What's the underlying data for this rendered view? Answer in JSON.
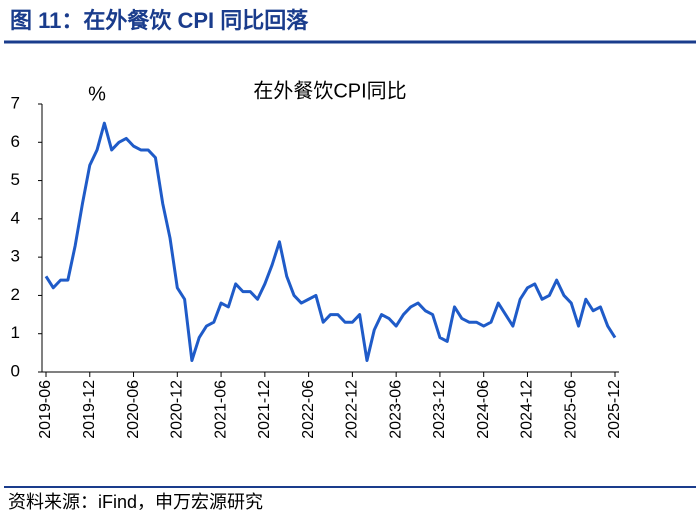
{
  "chart_data": {
    "type": "line",
    "header": "图 11：在外餐饮 CPI 同比回落",
    "title": "在外餐饮CPI同比",
    "y_unit": "%",
    "source": "资料来源：iFind，申万宏源研究",
    "categories": [
      "2019-06",
      null,
      null,
      null,
      null,
      null,
      "2019-12",
      null,
      null,
      null,
      null,
      null,
      "2020-06",
      null,
      null,
      null,
      null,
      null,
      "2020-12",
      null,
      null,
      null,
      null,
      null,
      "2021-06",
      null,
      null,
      null,
      null,
      null,
      "2021-12",
      null,
      null,
      null,
      null,
      null,
      "2022-06",
      null,
      null,
      null,
      null,
      null,
      "2022-12",
      null,
      null,
      null,
      null,
      null,
      "2023-06",
      null,
      null,
      null,
      null,
      null,
      "2023-12",
      null,
      null,
      null,
      null,
      null,
      "2024-06",
      null,
      null,
      null,
      null,
      null,
      "2024-12",
      null,
      null,
      null,
      null,
      null,
      "2025-06",
      null,
      null,
      null,
      null,
      null,
      "2025-12"
    ],
    "series": [
      {
        "name": "在外餐饮CPI同比",
        "color": "#1f5bc8",
        "values": [
          2.5,
          2.2,
          2.4,
          2.4,
          3.3,
          4.4,
          5.4,
          5.8,
          6.5,
          5.8,
          6.0,
          6.1,
          5.9,
          5.8,
          5.8,
          5.6,
          4.4,
          3.5,
          2.2,
          1.9,
          0.3,
          0.9,
          1.2,
          1.3,
          1.8,
          1.7,
          2.3,
          2.1,
          2.1,
          1.9,
          2.3,
          2.8,
          3.4,
          2.5,
          2.0,
          1.8,
          1.9,
          2.0,
          1.3,
          1.5,
          1.5,
          1.3,
          1.3,
          1.5,
          0.3,
          1.1,
          1.5,
          1.4,
          1.2,
          1.5,
          1.7,
          1.8,
          1.6,
          1.5,
          0.9,
          0.8,
          1.7,
          1.4,
          1.3,
          1.3,
          1.2,
          1.3,
          1.8,
          1.5,
          1.2,
          1.9,
          2.2,
          2.3,
          1.9,
          2.0,
          2.4,
          2.0,
          1.8,
          1.2,
          1.9,
          1.6,
          1.7,
          1.2,
          0.9
        ]
      }
    ],
    "ylim": [
      0,
      7
    ],
    "yticks": [
      0,
      1,
      2,
      3,
      4,
      5,
      6,
      7
    ]
  }
}
